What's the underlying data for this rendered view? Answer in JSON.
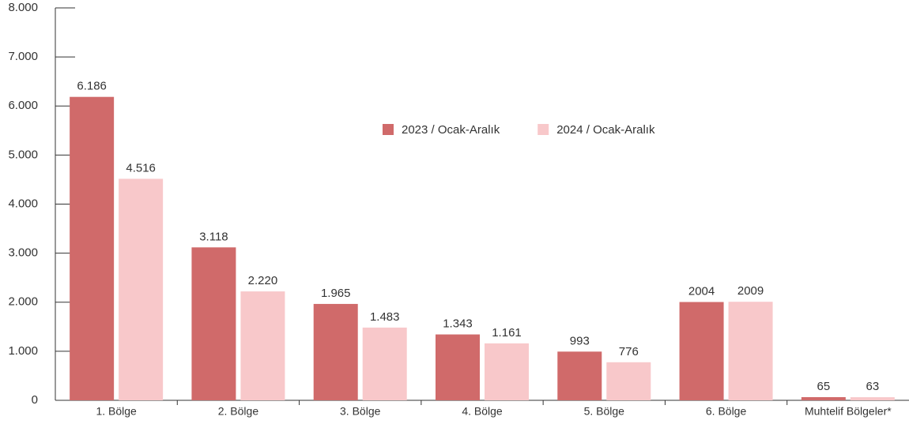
{
  "chart_data": {
    "type": "bar",
    "categories": [
      "1. Bölge",
      "2. Bölge",
      "3. Bölge",
      "4. Bölge",
      "5. Bölge",
      "6. Bölge",
      "Muhtelif Bölgeler*"
    ],
    "series": [
      {
        "name": "2023 / Ocak-Aralık",
        "color": "#d06a6a",
        "values": [
          6186,
          3118,
          1965,
          1343,
          993,
          2004,
          65
        ],
        "value_labels": [
          "6.186",
          "3.118",
          "1.965",
          "1.343",
          "993",
          "2004",
          "65"
        ]
      },
      {
        "name": "2024 / Ocak-Aralık",
        "color": "#f8c8ca",
        "values": [
          4516,
          2220,
          1483,
          1161,
          776,
          2009,
          63
        ],
        "value_labels": [
          "4.516",
          "2.220",
          "1.483",
          "1.161",
          "776",
          "2009",
          "63"
        ]
      }
    ],
    "ylim": [
      0,
      8000
    ],
    "yticks": [
      0,
      {
        "value": 1000,
        "label": "1.000"
      },
      {
        "value": 2000,
        "label": "2.000"
      },
      {
        "value": 3000,
        "label": "3.000"
      },
      {
        "value": 4000,
        "label": "4.000"
      },
      {
        "value": 5000,
        "label": "5.000"
      },
      {
        "value": 6000,
        "label": "6.000"
      },
      {
        "value": 7000,
        "label": "7.000"
      },
      {
        "value": 8000,
        "label": "8.000"
      }
    ],
    "legend": "top-center"
  }
}
